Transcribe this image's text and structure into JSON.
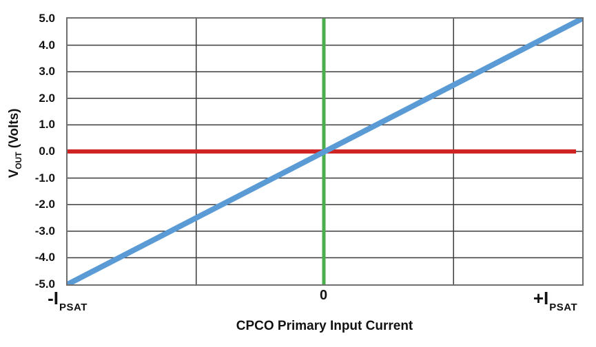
{
  "chart_data": {
    "type": "line",
    "title": "",
    "xlabel": "CPCO Primary Input Current",
    "ylabel": "VOUT (Volts)",
    "ylabel_parts": {
      "main": "V",
      "sub": "OUT",
      "rest": " (Volts)"
    },
    "x_axis": {
      "ticks": [
        {
          "main": "-I",
          "sub": "PSAT",
          "frac": 0
        },
        {
          "main": "0",
          "sub": "",
          "frac": 0.498
        },
        {
          "main": "+I",
          "sub": "PSAT",
          "frac": 0.948
        }
      ]
    },
    "y_axis": {
      "min": -5,
      "max": 5,
      "step": 1,
      "tick_labels": [
        "5.0",
        "4.0",
        "3.0",
        "2.0",
        "1.0",
        "0.0",
        "-1.0",
        "-2.0",
        "-3.0",
        "-4.0",
        "-5.0"
      ]
    },
    "grid": {
      "x_divisions": 4,
      "horizontal_step": 1,
      "color": "#3b3b3b"
    },
    "series": [
      {
        "name": "zero-current-line",
        "color": "#4aae4c",
        "stroke_width": 5,
        "points_xfrac_y": [
          [
            0.498,
            5
          ],
          [
            0.498,
            -5
          ]
        ]
      },
      {
        "name": "zero-output-line",
        "color": "#ce2424",
        "stroke_width": 6,
        "points_xfrac_y": [
          [
            0,
            0
          ],
          [
            0.988,
            0
          ]
        ]
      },
      {
        "name": "vout-transfer-line",
        "color": "#5b9bd5",
        "stroke_width": 8,
        "points_xfrac_y": [
          [
            0,
            -5
          ],
          [
            1,
            5
          ]
        ]
      }
    ],
    "legend": null
  },
  "colors": {
    "blue": "#5b9bd5",
    "red": "#ce2424",
    "green": "#4aae4c",
    "grid": "#3b3b3b",
    "border": "#6f6f6f",
    "text": "#121212"
  }
}
